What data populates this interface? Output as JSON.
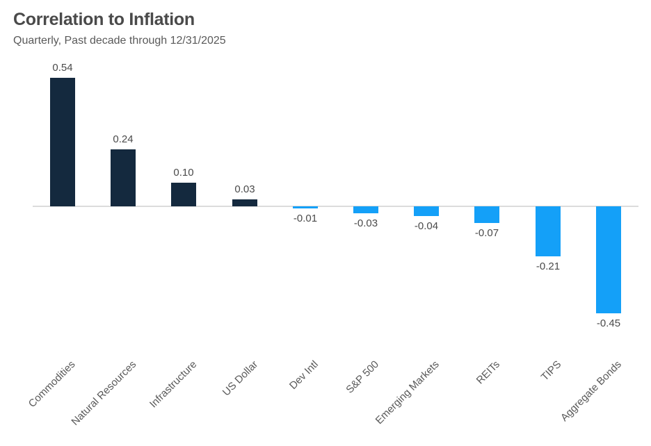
{
  "header": {
    "title": "Correlation to Inflation",
    "subtitle": "Quarterly, Past decade through 12/31/2025"
  },
  "chart_data": {
    "type": "bar",
    "title": "Correlation to Inflation",
    "subtitle": "Quarterly, Past decade through 12/31/2025",
    "categories": [
      "Commodities",
      "Natural Resources",
      "Infrastructure",
      "US Dollar",
      "Dev Intl",
      "S&P 500",
      "Emerging Markets",
      "REITs",
      "TIPS",
      "Aggregate Bonds"
    ],
    "values": [
      0.54,
      0.24,
      0.1,
      0.03,
      -0.01,
      -0.03,
      -0.04,
      -0.07,
      -0.21,
      -0.45
    ],
    "value_labels": [
      "0.54",
      "0.24",
      "0.10",
      "0.03",
      "-0.01",
      "-0.03",
      "-0.04",
      "-0.07",
      "-0.21",
      "-0.45"
    ],
    "xlabel": "",
    "ylabel": "",
    "ylim": [
      -0.55,
      0.6
    ],
    "grid": false,
    "legend": false,
    "value_label_position": "outside-end",
    "category_label_rotation_deg": 45,
    "colors": {
      "positive_bar": "#14293e",
      "negative_bar": "#14a0f8",
      "zero_line": "#dcdcdc",
      "title_text": "#4a4a4a",
      "subtitle_text": "#595959",
      "value_text": "#4a4a4a",
      "category_text": "#595959",
      "background": "#ffffff"
    }
  }
}
